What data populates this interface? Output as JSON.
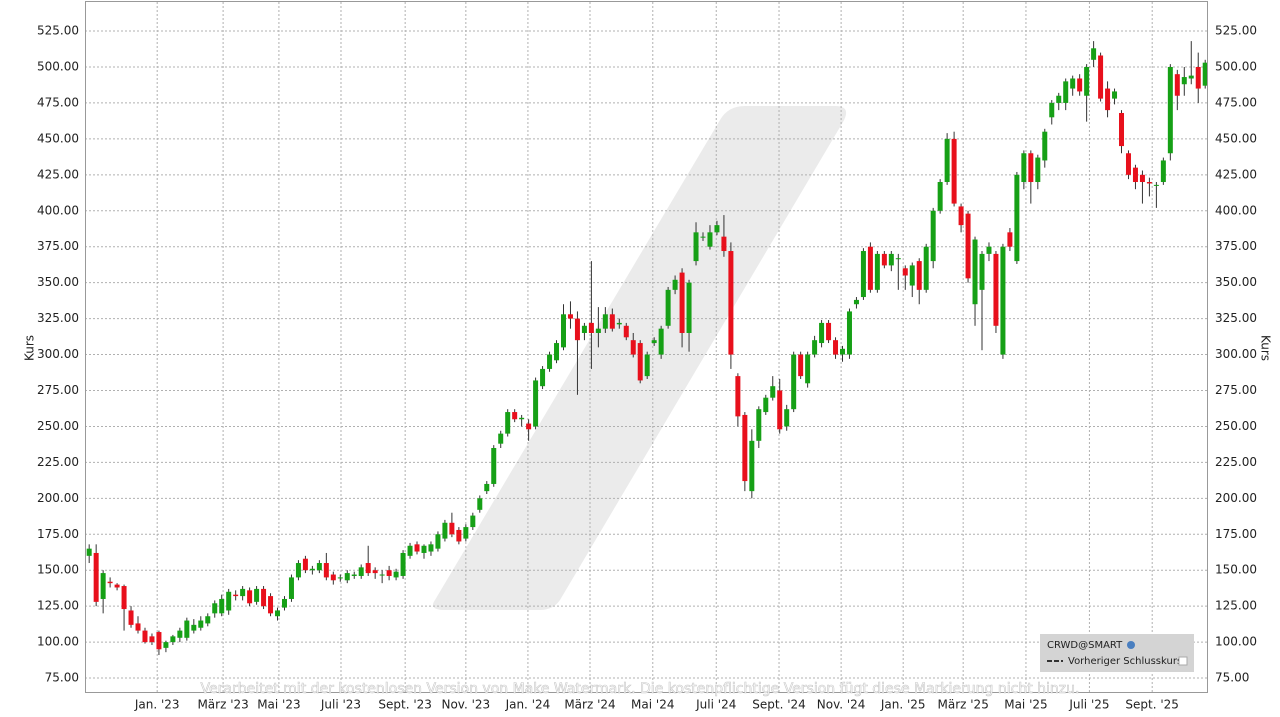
{
  "chart_data": {
    "type": "candlestick",
    "ylabel": "Kurs",
    "legend": {
      "symbol": "CRWD@SMART",
      "line": "Vorheriger Schlusskurs"
    },
    "watermark": "Verarbeitet mit der kostenlosen Version von Make Watermark. Die kostenpflichtige Version fügt diese Markierung nicht hinzu.",
    "up_color": "#16a016",
    "down_color": "#e8101c",
    "grid": true,
    "xlim": [
      -0.6,
      160.4
    ],
    "ylim": [
      65.3,
      545.2
    ],
    "xticks": [
      {
        "value": 9.75,
        "label": "Jan. '23"
      },
      {
        "value": 19.2,
        "label": "März '23"
      },
      {
        "value": 27.2,
        "label": "Mai '23"
      },
      {
        "value": 36.1,
        "label": "Juli '23"
      },
      {
        "value": 45.3,
        "label": "Sept. '23"
      },
      {
        "value": 54.0,
        "label": "Nov. '23"
      },
      {
        "value": 62.9,
        "label": "Jan. '24"
      },
      {
        "value": 71.8,
        "label": "März '24"
      },
      {
        "value": 80.8,
        "label": "Mai '24"
      },
      {
        "value": 89.9,
        "label": "Juli '24"
      },
      {
        "value": 98.9,
        "label": "Sept. '24"
      },
      {
        "value": 107.8,
        "label": "Nov. '24"
      },
      {
        "value": 116.7,
        "label": "Jan. '25"
      },
      {
        "value": 125.3,
        "label": "März '25"
      },
      {
        "value": 134.3,
        "label": "Mai '25"
      },
      {
        "value": 143.4,
        "label": "Juli '25"
      },
      {
        "value": 152.4,
        "label": "Sept. '25"
      }
    ],
    "yticks": [
      {
        "value": 75,
        "label": "75.00"
      },
      {
        "value": 100,
        "label": "100.00"
      },
      {
        "value": 125,
        "label": "125.00"
      },
      {
        "value": 150,
        "label": "150.00"
      },
      {
        "value": 175,
        "label": "175.00"
      },
      {
        "value": 200,
        "label": "200.00"
      },
      {
        "value": 225,
        "label": "225.00"
      },
      {
        "value": 250,
        "label": "250.00"
      },
      {
        "value": 275,
        "label": "275.00"
      },
      {
        "value": 300,
        "label": "300.00"
      },
      {
        "value": 325,
        "label": "325.00"
      },
      {
        "value": 350,
        "label": "350.00"
      },
      {
        "value": 375,
        "label": "375.00"
      },
      {
        "value": 400,
        "label": "400.00"
      },
      {
        "value": 425,
        "label": "425.00"
      },
      {
        "value": 450,
        "label": "450.00"
      },
      {
        "value": 475,
        "label": "475.00"
      },
      {
        "value": 500,
        "label": "500.00"
      },
      {
        "value": 525,
        "label": "525.00"
      }
    ],
    "ohlc": [
      [
        160,
        168,
        155,
        165
      ],
      [
        162,
        168,
        125,
        128
      ],
      [
        130,
        150,
        120,
        148
      ],
      [
        142,
        145,
        138,
        141
      ],
      [
        140,
        141,
        136,
        138
      ],
      [
        139,
        140,
        108,
        123
      ],
      [
        122,
        125,
        110,
        112
      ],
      [
        113,
        118,
        106,
        108
      ],
      [
        108,
        110,
        99,
        100
      ],
      [
        104,
        106,
        98,
        100
      ],
      [
        107,
        108,
        91,
        95
      ],
      [
        96,
        101,
        93,
        100
      ],
      [
        100,
        105,
        98,
        104
      ],
      [
        103,
        110,
        100,
        108
      ],
      [
        103,
        117,
        101,
        115
      ],
      [
        108,
        116,
        106,
        112
      ],
      [
        110,
        118,
        108,
        115
      ],
      [
        113,
        120,
        111,
        118
      ],
      [
        120,
        129,
        117,
        127
      ],
      [
        120,
        133,
        118,
        130
      ],
      [
        122,
        137,
        119,
        135
      ],
      [
        133,
        136,
        129,
        132
      ],
      [
        132,
        139,
        129,
        137
      ],
      [
        136,
        138,
        125,
        127
      ],
      [
        128,
        139,
        126,
        137
      ],
      [
        137,
        139,
        123,
        125
      ],
      [
        132,
        134,
        118,
        120
      ],
      [
        118,
        124,
        115,
        122
      ],
      [
        124,
        132,
        122,
        130
      ],
      [
        130,
        147,
        128,
        145
      ],
      [
        145,
        157,
        143,
        155
      ],
      [
        158,
        160,
        148,
        150
      ],
      [
        150,
        153,
        147,
        151
      ],
      [
        150,
        157,
        148,
        155
      ],
      [
        155,
        162,
        143,
        145
      ],
      [
        147,
        149,
        140,
        143
      ],
      [
        145,
        147,
        142,
        145
      ],
      [
        143,
        150,
        141,
        148
      ],
      [
        146,
        149,
        144,
        147
      ],
      [
        146,
        154,
        144,
        152
      ],
      [
        155,
        167,
        146,
        148
      ],
      [
        150,
        152,
        144,
        148
      ],
      [
        147,
        150,
        141,
        147
      ],
      [
        150,
        153,
        143,
        146
      ],
      [
        145,
        151,
        143,
        149
      ],
      [
        146,
        164,
        144,
        162
      ],
      [
        160,
        169,
        158,
        167
      ],
      [
        168,
        170,
        161,
        163
      ],
      [
        162,
        168,
        158,
        167
      ],
      [
        163,
        170,
        160,
        168
      ],
      [
        165,
        177,
        163,
        175
      ],
      [
        172,
        185,
        170,
        183
      ],
      [
        183,
        190,
        173,
        175
      ],
      [
        178,
        180,
        168,
        170
      ],
      [
        172,
        182,
        170,
        180
      ],
      [
        180,
        190,
        178,
        188
      ],
      [
        192,
        202,
        190,
        200
      ],
      [
        205,
        212,
        203,
        210
      ],
      [
        210,
        237,
        208,
        235
      ],
      [
        238,
        247,
        235,
        245
      ],
      [
        245,
        262,
        243,
        260
      ],
      [
        260,
        262,
        253,
        255
      ],
      [
        255,
        258,
        250,
        256
      ],
      [
        252,
        255,
        240,
        248
      ],
      [
        250,
        284,
        248,
        282
      ],
      [
        278,
        292,
        276,
        290
      ],
      [
        290,
        302,
        288,
        300
      ],
      [
        296,
        310,
        294,
        308
      ],
      [
        305,
        335,
        303,
        328
      ],
      [
        328,
        337,
        318,
        325
      ],
      [
        325,
        330,
        272,
        310
      ],
      [
        315,
        322,
        310,
        320
      ],
      [
        322,
        365,
        290,
        315
      ],
      [
        315,
        333,
        305,
        318
      ],
      [
        318,
        333,
        315,
        328
      ],
      [
        328,
        332,
        316,
        318
      ],
      [
        321,
        325,
        318,
        322
      ],
      [
        320,
        322,
        310,
        312
      ],
      [
        310,
        315,
        298,
        300
      ],
      [
        308,
        310,
        280,
        282
      ],
      [
        285,
        302,
        283,
        300
      ],
      [
        308,
        312,
        306,
        310
      ],
      [
        300,
        320,
        297,
        318
      ],
      [
        320,
        347,
        318,
        345
      ],
      [
        345,
        355,
        342,
        352
      ],
      [
        357,
        360,
        305,
        315
      ],
      [
        315,
        352,
        302,
        350
      ],
      [
        365,
        392,
        362,
        385
      ],
      [
        382,
        385,
        379,
        382
      ],
      [
        375,
        390,
        373,
        385
      ],
      [
        385,
        393,
        383,
        390
      ],
      [
        382,
        397,
        368,
        372
      ],
      [
        372,
        378,
        290,
        300
      ],
      [
        285,
        287,
        250,
        257
      ],
      [
        258,
        260,
        205,
        212
      ],
      [
        205,
        248,
        200,
        240
      ],
      [
        240,
        264,
        235,
        262
      ],
      [
        260,
        272,
        258,
        270
      ],
      [
        270,
        285,
        268,
        278
      ],
      [
        275,
        283,
        245,
        248
      ],
      [
        250,
        265,
        247,
        262
      ],
      [
        262,
        302,
        260,
        300
      ],
      [
        300,
        302,
        283,
        285
      ],
      [
        280,
        302,
        277,
        300
      ],
      [
        300,
        313,
        298,
        310
      ],
      [
        308,
        324,
        305,
        322
      ],
      [
        322,
        324,
        308,
        310
      ],
      [
        310,
        312,
        297,
        300
      ],
      [
        300,
        306,
        295,
        304
      ],
      [
        300,
        332,
        297,
        330
      ],
      [
        335,
        340,
        332,
        338
      ],
      [
        340,
        374,
        338,
        372
      ],
      [
        375,
        378,
        343,
        345
      ],
      [
        345,
        372,
        343,
        370
      ],
      [
        370,
        372,
        360,
        362
      ],
      [
        362,
        372,
        358,
        370
      ],
      [
        367,
        370,
        345,
        367
      ],
      [
        360,
        362,
        345,
        355
      ],
      [
        348,
        364,
        340,
        362
      ],
      [
        365,
        367,
        335,
        345
      ],
      [
        345,
        377,
        343,
        375
      ],
      [
        365,
        402,
        360,
        400
      ],
      [
        400,
        422,
        398,
        420
      ],
      [
        420,
        454,
        418,
        450
      ],
      [
        450,
        455,
        403,
        405
      ],
      [
        403,
        405,
        385,
        390
      ],
      [
        398,
        400,
        350,
        353
      ],
      [
        335,
        382,
        320,
        380
      ],
      [
        345,
        372,
        303,
        370
      ],
      [
        370,
        378,
        365,
        375
      ],
      [
        370,
        372,
        315,
        320
      ],
      [
        300,
        377,
        297,
        375
      ],
      [
        385,
        388,
        372,
        375
      ],
      [
        365,
        427,
        363,
        425
      ],
      [
        420,
        442,
        415,
        440
      ],
      [
        440,
        442,
        405,
        420
      ],
      [
        420,
        439,
        415,
        437
      ],
      [
        435,
        457,
        430,
        455
      ],
      [
        465,
        477,
        460,
        475
      ],
      [
        475,
        482,
        470,
        480
      ],
      [
        475,
        492,
        470,
        490
      ],
      [
        485,
        494,
        480,
        492
      ],
      [
        492,
        495,
        480,
        483
      ],
      [
        480,
        502,
        462,
        500
      ],
      [
        505,
        518,
        500,
        513
      ],
      [
        508,
        510,
        476,
        478
      ],
      [
        485,
        490,
        465,
        470
      ],
      [
        478,
        485,
        474,
        483
      ],
      [
        468,
        470,
        440,
        445
      ],
      [
        440,
        442,
        422,
        425
      ],
      [
        430,
        432,
        415,
        420
      ],
      [
        425,
        428,
        405,
        420
      ],
      [
        420,
        423,
        410,
        419
      ],
      [
        418,
        420,
        402,
        418
      ],
      [
        420,
        437,
        418,
        435
      ],
      [
        440,
        502,
        435,
        500
      ],
      [
        495,
        498,
        470,
        480
      ],
      [
        488,
        500,
        480,
        493
      ],
      [
        492,
        518,
        488,
        494
      ],
      [
        500,
        510,
        475,
        485
      ],
      [
        487,
        505,
        485,
        503
      ]
    ]
  }
}
